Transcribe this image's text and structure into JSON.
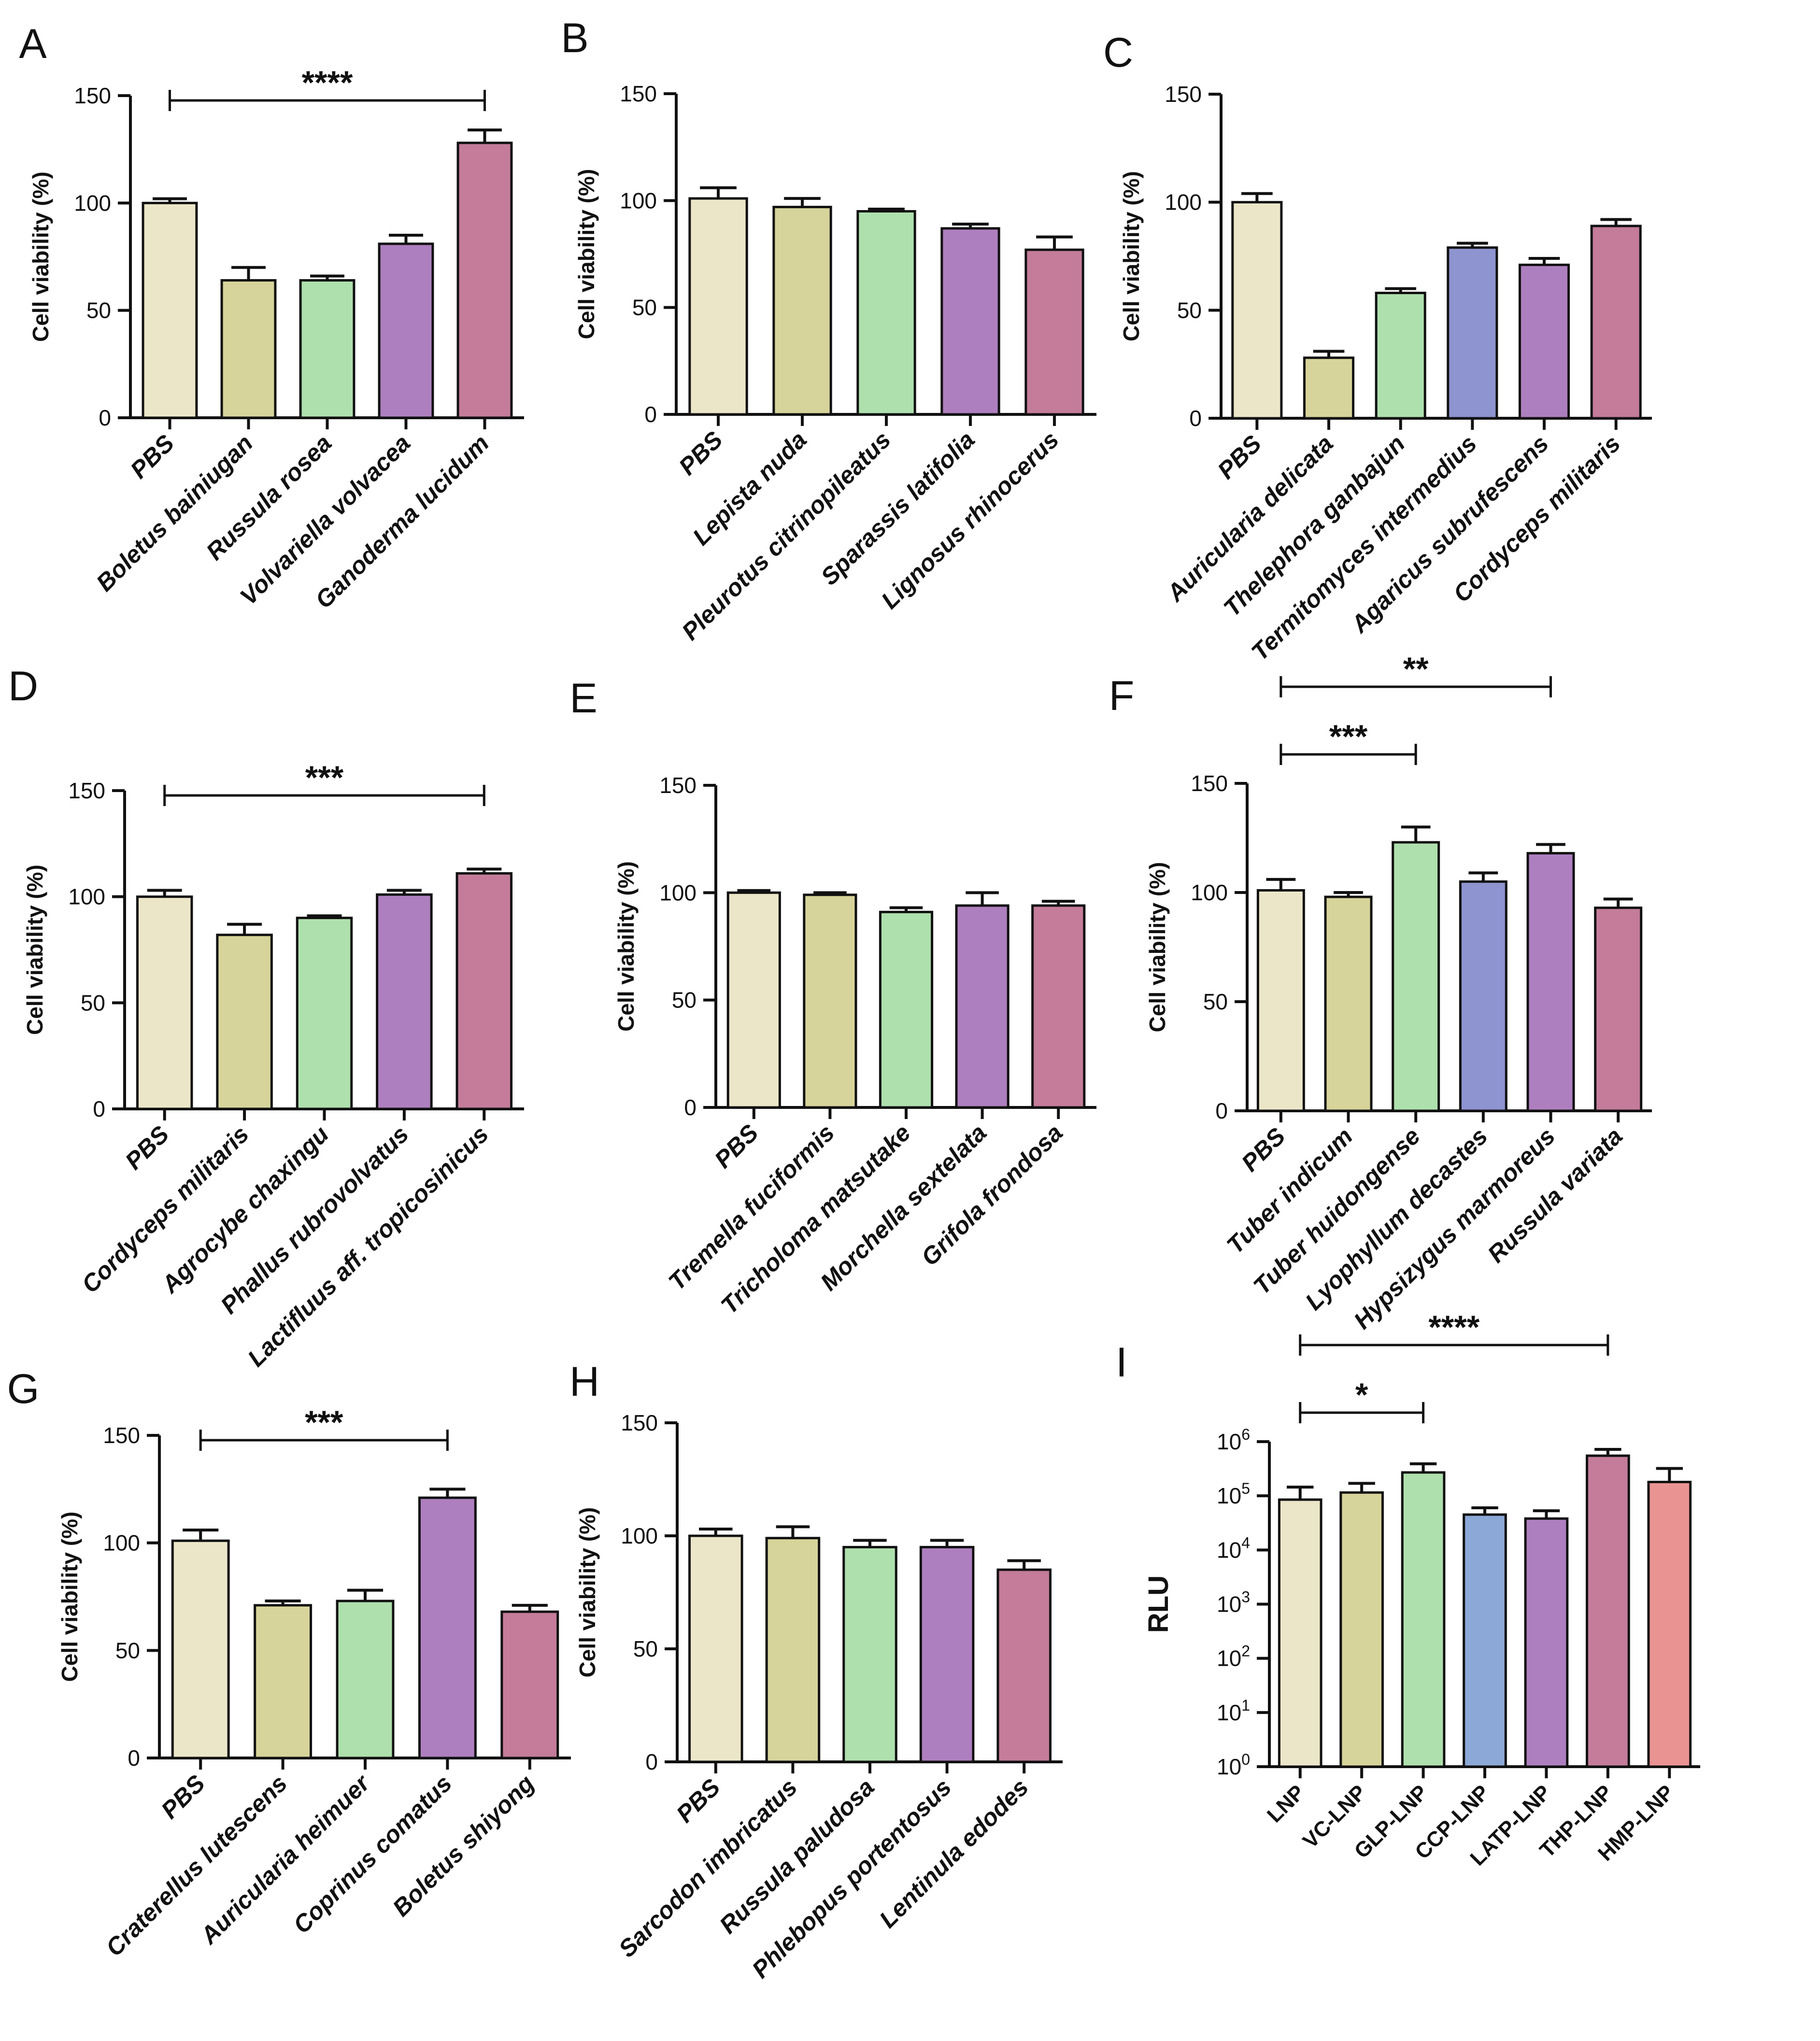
{
  "colors": {
    "cream": "#ece6c9",
    "olive": "#d6d49a",
    "mint": "#aee0ad",
    "lilac": "#ae7fbf",
    "rose": "#c47c9a",
    "blue": "#8e94d0",
    "steel": "#8ca8d6",
    "salmon": "#ea9393"
  },
  "chart_data": [
    {
      "type": "bar",
      "label": "A",
      "ylabel": "Cell viability (%)",
      "ylim": [
        0,
        150
      ],
      "yticks": [
        0,
        50,
        100,
        150
      ],
      "categories": [
        "PBS",
        "Boletus bainiugan",
        "Russula rosea",
        "Volvariella volvacea",
        "Ganoderma lucidum"
      ],
      "values": [
        100,
        64,
        64,
        81,
        128
      ],
      "errors": [
        2,
        6,
        2,
        4,
        6
      ],
      "bar_colors": [
        "cream",
        "olive",
        "mint",
        "lilac",
        "rose"
      ],
      "significance": [
        {
          "from": 0,
          "to": 4,
          "label": "****",
          "level": 0
        }
      ]
    },
    {
      "type": "bar",
      "label": "B",
      "ylabel": "Cell viability (%)",
      "ylim": [
        0,
        150
      ],
      "yticks": [
        0,
        50,
        100,
        150
      ],
      "categories": [
        "PBS",
        "Lepista nuda",
        "Pleurotus citrinopileatus",
        "Sparassis latifolia",
        "Lignosus rhinocerus"
      ],
      "values": [
        101,
        97,
        95,
        87,
        77
      ],
      "errors": [
        5,
        4,
        1,
        2,
        6
      ],
      "bar_colors": [
        "cream",
        "olive",
        "mint",
        "lilac",
        "rose"
      ],
      "significance": []
    },
    {
      "type": "bar",
      "label": "C",
      "ylabel": "Cell viability (%)",
      "ylim": [
        0,
        150
      ],
      "yticks": [
        0,
        50,
        100,
        150
      ],
      "categories": [
        "PBS",
        "Auricularia delicata",
        "Thelephora ganbajun",
        "Termitomyces intermedius",
        "Agaricus subrufescens",
        "Cordyceps militaris"
      ],
      "values": [
        100,
        28,
        58,
        79,
        71,
        89
      ],
      "errors": [
        4,
        3,
        2,
        2,
        3,
        3
      ],
      "bar_colors": [
        "cream",
        "olive",
        "mint",
        "blue",
        "lilac",
        "rose"
      ],
      "significance": []
    },
    {
      "type": "bar",
      "label": "D",
      "ylabel": "Cell viability (%)",
      "ylim": [
        0,
        150
      ],
      "yticks": [
        0,
        50,
        100,
        150
      ],
      "categories": [
        "PBS",
        "Cordyceps militaris",
        "Agrocybe chaxingu",
        "Phallus rubrovolvatus",
        "Lactifluus aff. tropicosinicus"
      ],
      "values": [
        100,
        82,
        90,
        101,
        111
      ],
      "errors": [
        3,
        5,
        1,
        2,
        2
      ],
      "bar_colors": [
        "cream",
        "olive",
        "mint",
        "lilac",
        "rose"
      ],
      "significance": [
        {
          "from": 0,
          "to": 4,
          "label": "***",
          "level": 0
        }
      ]
    },
    {
      "type": "bar",
      "label": "E",
      "ylabel": "Cell viability (%)",
      "ylim": [
        0,
        150
      ],
      "yticks": [
        0,
        50,
        100,
        150
      ],
      "categories": [
        "PBS",
        "Tremella fuciformis",
        "Tricholoma matsutake",
        "Morchella sextelata",
        "Grifola frondosa"
      ],
      "values": [
        100,
        99,
        91,
        94,
        94
      ],
      "errors": [
        1,
        1,
        2,
        6,
        2
      ],
      "bar_colors": [
        "cream",
        "olive",
        "mint",
        "lilac",
        "rose"
      ],
      "significance": []
    },
    {
      "type": "bar",
      "label": "F",
      "ylabel": "Cell viability (%)",
      "ylim": [
        0,
        150
      ],
      "yticks": [
        0,
        50,
        100,
        150
      ],
      "categories": [
        "PBS",
        "Tuber indicum",
        "Tuber huidongense",
        "Lyophyllum decastes",
        "Hypsizygus marmoreus",
        "Russula variata"
      ],
      "values": [
        101,
        98,
        123,
        105,
        118,
        93
      ],
      "errors": [
        5,
        2,
        7,
        4,
        4,
        4
      ],
      "bar_colors": [
        "cream",
        "olive",
        "mint",
        "blue",
        "lilac",
        "rose"
      ],
      "significance": [
        {
          "from": 0,
          "to": 2,
          "label": "***",
          "level": 0
        },
        {
          "from": 0,
          "to": 4,
          "label": "**",
          "level": 1
        }
      ]
    },
    {
      "type": "bar",
      "label": "G",
      "ylabel": "Cell viability (%)",
      "ylim": [
        0,
        150
      ],
      "yticks": [
        0,
        50,
        100,
        150
      ],
      "categories": [
        "PBS",
        "Craterellus lutescens",
        "Auricularia heimuer",
        "Coprinus comatus",
        "Boletus shiyong"
      ],
      "values": [
        101,
        71,
        73,
        121,
        68
      ],
      "errors": [
        5,
        2,
        5,
        4,
        3
      ],
      "bar_colors": [
        "cream",
        "olive",
        "mint",
        "lilac",
        "rose"
      ],
      "significance": [
        {
          "from": 0,
          "to": 3,
          "label": "***",
          "level": 0
        }
      ]
    },
    {
      "type": "bar",
      "label": "H",
      "ylabel": "Cell viability (%)",
      "ylim": [
        0,
        150
      ],
      "yticks": [
        0,
        50,
        100,
        150
      ],
      "categories": [
        "PBS",
        "Sarcodon imbricatus",
        "Russula paludosa",
        "Phlebopus portentosus",
        "Lentinula edodes"
      ],
      "values": [
        100,
        99,
        95,
        95,
        85
      ],
      "errors": [
        3,
        5,
        3,
        3,
        4
      ],
      "bar_colors": [
        "cream",
        "olive",
        "mint",
        "lilac",
        "rose"
      ],
      "significance": []
    },
    {
      "type": "bar",
      "label": "I",
      "ylabel": "RLU",
      "yscale": "log",
      "ylim_log10": [
        0,
        6
      ],
      "yticks": [
        {
          "base": "10",
          "exp": "0"
        },
        {
          "base": "10",
          "exp": "1"
        },
        {
          "base": "10",
          "exp": "2"
        },
        {
          "base": "10",
          "exp": "3"
        },
        {
          "base": "10",
          "exp": "4"
        },
        {
          "base": "10",
          "exp": "5"
        },
        {
          "base": "10",
          "exp": "6"
        }
      ],
      "categories": [
        "LNP",
        "VC-LNP",
        "GLP-LNP",
        "CCP-LNP",
        "LATP-LNP",
        "THP-LNP",
        "HMP-LNP"
      ],
      "values": [
        85000,
        115000,
        270000,
        45000,
        38000,
        550000,
        180000
      ],
      "error_tops": [
        145000,
        170000,
        390000,
        60000,
        53000,
        720000,
        320000
      ],
      "bar_colors": [
        "cream",
        "olive",
        "mint",
        "steel",
        "lilac",
        "rose",
        "salmon"
      ],
      "significance": [
        {
          "from": 0,
          "to": 2,
          "label": "*",
          "level": 0
        },
        {
          "from": 0,
          "to": 5,
          "label": "****",
          "level": 1
        }
      ]
    }
  ]
}
